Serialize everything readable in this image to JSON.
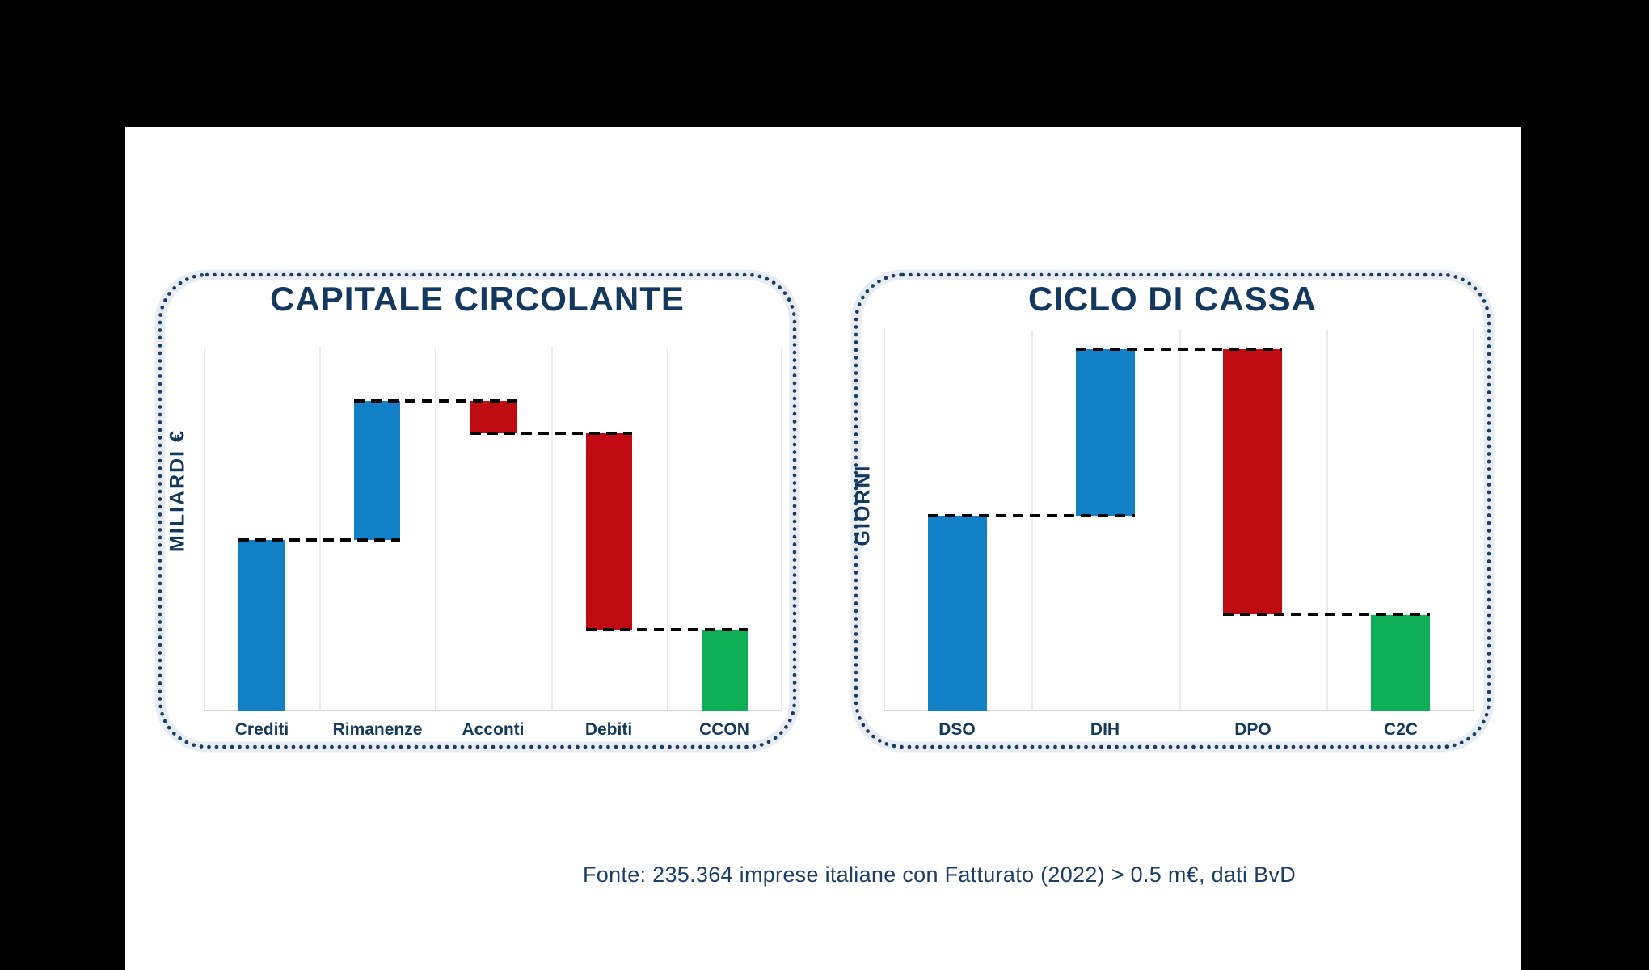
{
  "slide": {
    "background": "#FFFFFF",
    "page_background": "#000000"
  },
  "colors": {
    "title_navy": "#14395E",
    "dotted_border": "#1B3C63",
    "border_halo": "#E8EDF4",
    "increase_blue": "#1180C6",
    "decrease_red": "#C00B12",
    "total_green": "#0DAE55",
    "gridline_gray": "#EBEBEB",
    "baseline_gray": "#D6D6D6",
    "connector_black": "#060606"
  },
  "footer": {
    "text": "Fonte: 235.364 imprese italiane con Fatturato (2022) > 0.5 m€, dati BvD"
  },
  "chart_data": [
    {
      "type": "waterfall",
      "title": "CAPITALE CIRCOLANTE",
      "ylabel": "MILIARDI €",
      "categories": [
        "Crediti",
        "Rimanenze",
        "Acconti",
        "Debiti",
        "CCON"
      ],
      "steps": [
        {
          "label": "Crediti",
          "kind": "increase",
          "value": 47.0
        },
        {
          "label": "Rimanenze",
          "kind": "increase",
          "value": 38.2
        },
        {
          "label": "Acconti",
          "kind": "decrease",
          "value": -8.9
        },
        {
          "label": "Debiti",
          "kind": "decrease",
          "value": -54.1
        },
        {
          "label": "CCON",
          "kind": "total",
          "value": 22.2
        }
      ],
      "axis": {
        "min": 0,
        "max": 100,
        "numeric_labels_shown": false
      },
      "legend": "none",
      "grid": "vertical-category-separators",
      "note": "No numeric scale printed on chart; values are relative units (% of plot height) read from pixels"
    },
    {
      "type": "waterfall",
      "title": "CICLO DI CASSA",
      "ylabel": "GIORNI",
      "categories": [
        "DSO",
        "DIH",
        "DPO",
        "C2C"
      ],
      "steps": [
        {
          "label": "DSO",
          "kind": "increase",
          "value": 51.1
        },
        {
          "label": "DIH",
          "kind": "increase",
          "value": 43.8
        },
        {
          "label": "DPO",
          "kind": "decrease",
          "value": -69.7
        },
        {
          "label": "C2C",
          "kind": "total",
          "value": 25.0
        }
      ],
      "axis": {
        "min": 0,
        "max": 100,
        "numeric_labels_shown": false
      },
      "legend": "none",
      "grid": "vertical-category-separators",
      "note": "No numeric scale printed on chart; values are relative units (% of plot height) read from pixels"
    }
  ]
}
